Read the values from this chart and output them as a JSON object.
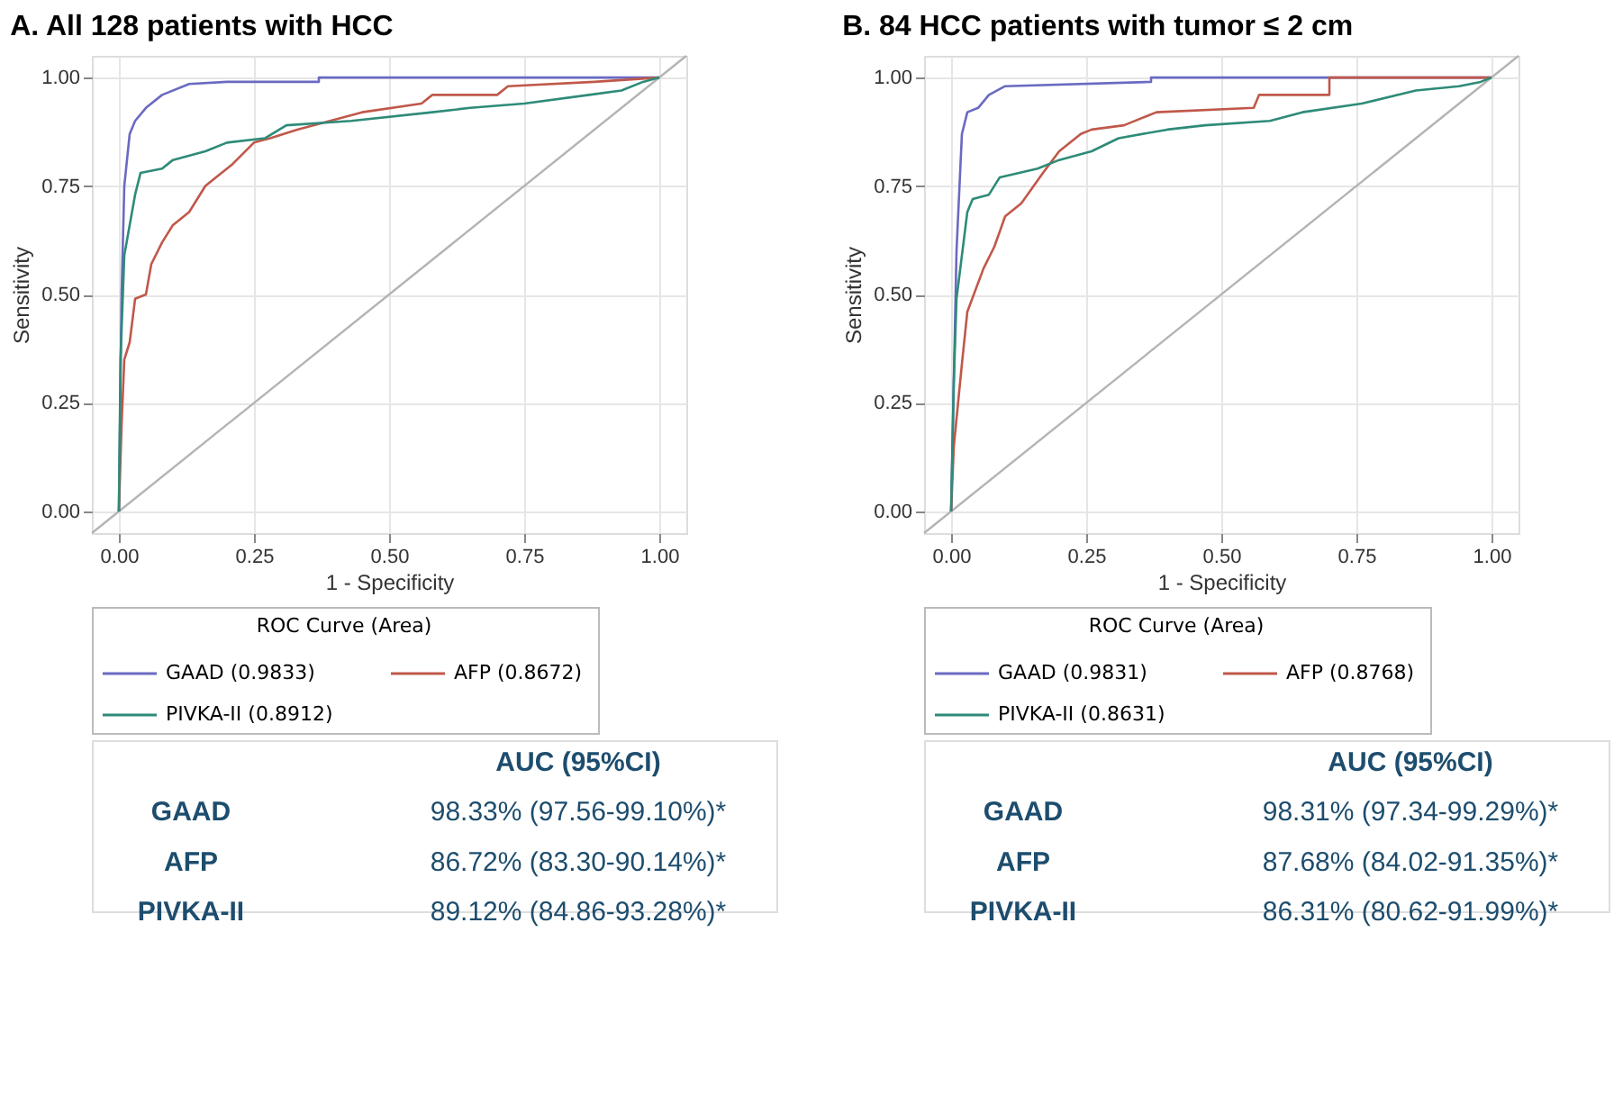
{
  "chart_data": [
    {
      "type": "line",
      "title": "A.  All 128 patients with HCC",
      "xlabel": "1 - Specificity",
      "ylabel": "Sensitivity",
      "legend_title": "ROC Curve (Area)",
      "legend": "bottom",
      "grid": true,
      "marker": "none",
      "xlim": [
        -0.05,
        1.05
      ],
      "ylim": [
        -0.05,
        1.05
      ],
      "xticks": [
        {
          "value": 0,
          "label": "0.00"
        },
        {
          "value": 0.25,
          "label": "0.25"
        },
        {
          "value": 0.5,
          "label": "0.50"
        },
        {
          "value": 0.75,
          "label": "0.75"
        },
        {
          "value": 1,
          "label": "1.00"
        }
      ],
      "yticks": [
        {
          "value": 0,
          "label": "0.00"
        },
        {
          "value": 0.25,
          "label": "0.25"
        },
        {
          "value": 0.5,
          "label": "0.50"
        },
        {
          "value": 0.75,
          "label": "0.75"
        },
        {
          "value": 1,
          "label": "1.00"
        }
      ],
      "series": [
        {
          "color": "#b4b4b4",
          "x": [
            -0.05,
            1.05
          ],
          "values": [
            -0.05,
            1.05
          ]
        },
        {
          "name": "GAAD  (0.9833)",
          "color": "#6a6ac2",
          "x": [
            0,
            0.005,
            0.01,
            0.02,
            0.03,
            0.05,
            0.08,
            0.13,
            0.2,
            0.37,
            0.37,
            1
          ],
          "values": [
            0,
            0.5,
            0.75,
            0.87,
            0.9,
            0.93,
            0.96,
            0.985,
            0.99,
            0.99,
            1,
            1
          ]
        },
        {
          "name": "AFP  (0.8672)",
          "color": "#c0584a",
          "x": [
            0,
            0.005,
            0.01,
            0.02,
            0.03,
            0.05,
            0.06,
            0.08,
            0.1,
            0.13,
            0.16,
            0.19,
            0.21,
            0.25,
            0.28,
            0.33,
            0.45,
            0.56,
            0.58,
            0.7,
            0.72,
            0.88,
            1
          ],
          "values": [
            0,
            0.2,
            0.35,
            0.39,
            0.49,
            0.5,
            0.57,
            0.62,
            0.66,
            0.69,
            0.75,
            0.78,
            0.8,
            0.85,
            0.86,
            0.88,
            0.92,
            0.94,
            0.96,
            0.96,
            0.98,
            0.99,
            1
          ]
        },
        {
          "name": "PIVKA-II  (0.8912)",
          "color": "#2e8b78",
          "x": [
            0,
            0.003,
            0.01,
            0.03,
            0.04,
            0.08,
            0.1,
            0.16,
            0.2,
            0.27,
            0.31,
            0.43,
            0.58,
            0.65,
            0.75,
            0.87,
            0.93,
            0.97,
            1
          ],
          "values": [
            0,
            0.35,
            0.59,
            0.73,
            0.78,
            0.79,
            0.81,
            0.83,
            0.85,
            0.86,
            0.89,
            0.9,
            0.92,
            0.93,
            0.94,
            0.96,
            0.97,
            0.99,
            1
          ]
        }
      ],
      "annotations": [
        "AUC (95%CI)",
        "GAAD",
        "98.33% (97.56-99.10%)*",
        "AFP",
        "86.72% (83.30-90.14%)*",
        "PIVKA-II",
        "89.12% (84.86-93.28%)*"
      ]
    },
    {
      "type": "line",
      "title": "B.  84 HCC patients with tumor ≤ 2 cm",
      "xlabel": "1 - Specificity",
      "ylabel": "Sensitivity",
      "legend_title": "ROC Curve (Area)",
      "legend": "bottom",
      "grid": true,
      "marker": "none",
      "xlim": [
        -0.05,
        1.05
      ],
      "ylim": [
        -0.05,
        1.05
      ],
      "xticks": [
        {
          "value": 0,
          "label": "0.00"
        },
        {
          "value": 0.25,
          "label": "0.25"
        },
        {
          "value": 0.5,
          "label": "0.50"
        },
        {
          "value": 0.75,
          "label": "0.75"
        },
        {
          "value": 1,
          "label": "1.00"
        }
      ],
      "yticks": [
        {
          "value": 0,
          "label": "0.00"
        },
        {
          "value": 0.25,
          "label": "0.25"
        },
        {
          "value": 0.5,
          "label": "0.50"
        },
        {
          "value": 0.75,
          "label": "0.75"
        },
        {
          "value": 1,
          "label": "1.00"
        }
      ],
      "series": [
        {
          "color": "#b4b4b4",
          "x": [
            -0.05,
            1.05
          ],
          "values": [
            -0.05,
            1.05
          ]
        },
        {
          "name": "GAAD  (0.9831)",
          "color": "#6a6ac2",
          "x": [
            0,
            0.01,
            0.02,
            0.03,
            0.05,
            0.07,
            0.1,
            0.37,
            0.37,
            1
          ],
          "values": [
            0,
            0.6,
            0.87,
            0.92,
            0.93,
            0.96,
            0.98,
            0.99,
            1,
            1
          ]
        },
        {
          "name": "AFP  (0.8768)",
          "color": "#c0584a",
          "x": [
            0,
            0.005,
            0.02,
            0.03,
            0.06,
            0.08,
            0.1,
            0.13,
            0.17,
            0.2,
            0.24,
            0.26,
            0.32,
            0.38,
            0.56,
            0.57,
            0.7,
            0.7,
            1
          ],
          "values": [
            0,
            0.15,
            0.34,
            0.46,
            0.56,
            0.61,
            0.68,
            0.71,
            0.78,
            0.83,
            0.87,
            0.88,
            0.89,
            0.92,
            0.93,
            0.96,
            0.96,
            1,
            1
          ]
        },
        {
          "name": "PIVKA-II  (0.8631)",
          "color": "#2e8b78",
          "x": [
            0,
            0.005,
            0.01,
            0.03,
            0.04,
            0.07,
            0.09,
            0.16,
            0.2,
            0.26,
            0.31,
            0.4,
            0.47,
            0.59,
            0.65,
            0.76,
            0.86,
            0.94,
            0.98,
            1
          ],
          "values": [
            0,
            0.3,
            0.49,
            0.69,
            0.72,
            0.73,
            0.77,
            0.79,
            0.81,
            0.83,
            0.86,
            0.88,
            0.89,
            0.9,
            0.92,
            0.94,
            0.97,
            0.98,
            0.99,
            1
          ]
        }
      ],
      "annotations": [
        "AUC (95%CI)",
        "GAAD",
        "98.31% (97.34-99.29%)*",
        "AFP",
        "87.68% (84.02-91.35%)*",
        "PIVKA-II",
        "86.31% (80.62-91.99%)*"
      ]
    }
  ]
}
